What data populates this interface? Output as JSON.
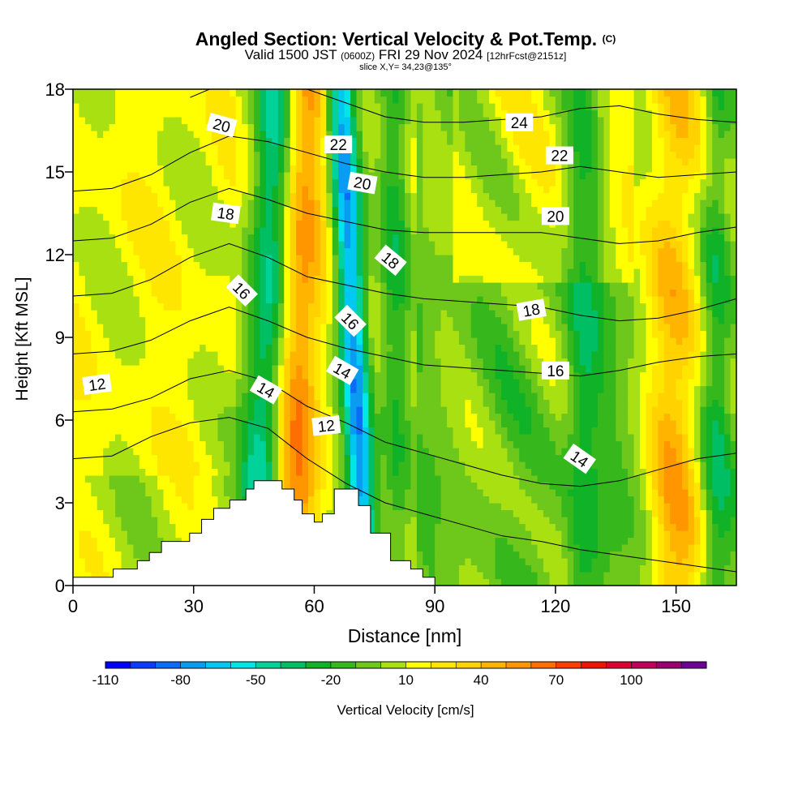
{
  "title": {
    "main": "Angled Section: Vertical Velocity & Pot.Temp.",
    "copyright": "(C)",
    "valid_prefix": "Valid 1500 JST",
    "utc": "(0600Z)",
    "valid_date": "FRI 29 Nov 2024",
    "forecast": "[12hrFcst@2151z]",
    "slice": "slice X,Y= 34,23@135°"
  },
  "chart_data": {
    "type": "heatmap",
    "xlabel": "Distance [nm]",
    "ylabel": "Height [Kft MSL]",
    "xlim": [
      0,
      165
    ],
    "ylim": [
      0,
      18
    ],
    "xticks": [
      0,
      30,
      60,
      90,
      120,
      150
    ],
    "yticks": [
      0,
      3,
      6,
      9,
      12,
      15,
      18
    ],
    "colorbar": {
      "label": "Vertical Velocity [cm/s]",
      "tick_labels": [
        "-110",
        "-80",
        "-50",
        "-20",
        "10",
        "40",
        "70",
        "100"
      ],
      "levels": [
        -110,
        -100,
        -90,
        -80,
        -70,
        -60,
        -50,
        -40,
        -30,
        -20,
        -10,
        0,
        10,
        20,
        30,
        40,
        50,
        60,
        70,
        80,
        90,
        100,
        110,
        120
      ],
      "colors": [
        "#0000ff",
        "#0a3cff",
        "#0a6cf8",
        "#0a9cf0",
        "#00c8f0",
        "#00e6e6",
        "#00d29a",
        "#00be64",
        "#10b228",
        "#36b81c",
        "#6ec81c",
        "#a8e012",
        "#ffff00",
        "#ffe600",
        "#ffd200",
        "#ffb400",
        "#ff9600",
        "#ff6e00",
        "#ff3c00",
        "#f01400",
        "#dc0032",
        "#c0005a",
        "#9a006e",
        "#6e0096"
      ]
    },
    "terrain_steps": [
      [
        0,
        0.3
      ],
      [
        10,
        0.6
      ],
      [
        16,
        0.9
      ],
      [
        19,
        1.2
      ],
      [
        22,
        1.6
      ],
      [
        29,
        1.9
      ],
      [
        32,
        2.4
      ],
      [
        35,
        2.8
      ],
      [
        39,
        3.1
      ],
      [
        43,
        3.5
      ],
      [
        45,
        3.8
      ],
      [
        52,
        3.5
      ],
      [
        55,
        3.1
      ],
      [
        57,
        2.6
      ],
      [
        60,
        2.3
      ],
      [
        62,
        2.6
      ],
      [
        65,
        3.5
      ],
      [
        71,
        2.9
      ],
      [
        74,
        1.9
      ],
      [
        79,
        0.9
      ],
      [
        84,
        0.6
      ],
      [
        87,
        0.3
      ],
      [
        90,
        0
      ]
    ],
    "features": [
      {
        "type": "downdraft",
        "x_top": 51,
        "x_bottom": 46,
        "width": 6,
        "peak": -60
      },
      {
        "type": "downdraft",
        "x_top": 66.5,
        "x_bottom": 73,
        "width": 4,
        "peak": -90
      },
      {
        "type": "updraft",
        "x_top": 57,
        "x_bottom": 55,
        "width": 7,
        "peak": 55
      },
      {
        "type": "downdraft",
        "x_top": 80,
        "x_bottom": 80,
        "width": 4,
        "peak": -25
      },
      {
        "type": "updraft",
        "x_top": 150,
        "x_bottom": 150,
        "width": 8,
        "peak": 45
      },
      {
        "type": "downdraft",
        "x_top": 160,
        "x_bottom": 160,
        "width": 4,
        "peak": -22
      },
      {
        "type": "downdraft",
        "x_top": 127,
        "x_bottom": 127,
        "width": 5,
        "peak": -25
      }
    ],
    "isentropes": [
      {
        "label": "12",
        "y": [
          4.6,
          4.7,
          5.4,
          5.9,
          6.1,
          5.7,
          4.6,
          3.7,
          3.0,
          2.6,
          2.2,
          1.8,
          1.6,
          1.3,
          1.1,
          0.9,
          0.7,
          0.5
        ]
      },
      {
        "label": "14",
        "y": [
          6.3,
          6.4,
          6.8,
          7.5,
          7.8,
          7.4,
          6.5,
          5.9,
          5.2,
          4.8,
          4.4,
          4.0,
          3.7,
          3.6,
          3.8,
          4.2,
          4.6,
          4.8
        ]
      },
      {
        "label": "16",
        "y": [
          8.4,
          8.5,
          8.9,
          9.6,
          10.1,
          9.6,
          9.0,
          8.6,
          8.3,
          8.0,
          7.9,
          7.8,
          7.7,
          7.6,
          7.8,
          8.1,
          8.3,
          8.4
        ]
      },
      {
        "label": "18",
        "y": [
          10.5,
          10.6,
          11.1,
          11.9,
          12.4,
          11.9,
          11.2,
          10.9,
          10.6,
          10.4,
          10.3,
          10.2,
          10.1,
          9.8,
          9.6,
          9.7,
          10.0,
          10.4
        ]
      },
      {
        "label": "20",
        "y": [
          12.5,
          12.6,
          13.1,
          13.9,
          14.4,
          14.0,
          13.5,
          13.2,
          12.9,
          12.8,
          12.8,
          12.8,
          12.8,
          12.6,
          12.4,
          12.5,
          12.8,
          13.0
        ]
      },
      {
        "label": "22",
        "y": [
          14.3,
          14.4,
          14.9,
          15.7,
          16.3,
          16.1,
          15.7,
          15.3,
          15.0,
          14.8,
          14.8,
          14.9,
          15.0,
          15.2,
          15.0,
          14.8,
          14.9,
          15.0
        ]
      },
      {
        "label": "24",
        "y": [
          null,
          null,
          null,
          17.7,
          18.3,
          18.3,
          18.0,
          17.5,
          17.0,
          16.8,
          16.8,
          16.9,
          17.0,
          17.3,
          17.4,
          17.1,
          16.9,
          16.8
        ]
      }
    ],
    "contour_labels": [
      {
        "text": "12",
        "x": 6,
        "y": 7.3,
        "angle": -8
      },
      {
        "text": "12",
        "x": 63,
        "y": 5.8,
        "angle": -6
      },
      {
        "text": "14",
        "x": 48,
        "y": 7.1,
        "angle": 30
      },
      {
        "text": "14",
        "x": 67,
        "y": 7.8,
        "angle": 30
      },
      {
        "text": "14",
        "x": 126,
        "y": 4.6,
        "angle": 35
      },
      {
        "text": "16",
        "x": 42,
        "y": 10.7,
        "angle": 45
      },
      {
        "text": "16",
        "x": 69,
        "y": 9.6,
        "angle": 45
      },
      {
        "text": "16",
        "x": 120,
        "y": 7.8,
        "angle": 0
      },
      {
        "text": "18",
        "x": 38,
        "y": 13.5,
        "angle": 8
      },
      {
        "text": "18",
        "x": 79,
        "y": 11.8,
        "angle": 40
      },
      {
        "text": "18",
        "x": 114,
        "y": 10.0,
        "angle": -10
      },
      {
        "text": "20",
        "x": 37,
        "y": 16.7,
        "angle": 15
      },
      {
        "text": "20",
        "x": 72,
        "y": 14.6,
        "angle": 10
      },
      {
        "text": "20",
        "x": 120,
        "y": 13.4,
        "angle": 0
      },
      {
        "text": "22",
        "x": 66,
        "y": 16.0,
        "angle": 0
      },
      {
        "text": "22",
        "x": 121,
        "y": 15.6,
        "angle": 0
      },
      {
        "text": "24",
        "x": 111,
        "y": 16.8,
        "angle": 0
      }
    ]
  }
}
